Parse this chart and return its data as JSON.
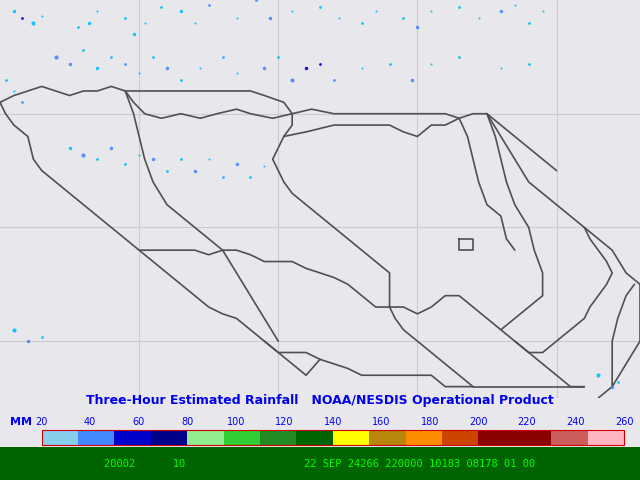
{
  "title_line1": "Three-Hour Estimated Rainfall   NOAA/NESDIS Operational Product",
  "title_color": "#0000EE",
  "map_bg": "#E8E8EC",
  "border_color": "#505050",
  "grid_color": "#CCCCCC",
  "bottom_bar_color": "#006400",
  "bottom_text": "20002      10                   22 SEP 24266 220000 10183 08178 01 00",
  "bottom_text_color": "#00FF00",
  "colorbar_label": "MM",
  "colorbar_tick_labels": [
    "20",
    "40",
    "60",
    "80",
    "100",
    "120",
    "140",
    "160",
    "180",
    "200",
    "220",
    "240",
    "260"
  ],
  "colorbar_colors": [
    "#87CEEB",
    "#4488FF",
    "#0000CD",
    "#00008B",
    "#90EE90",
    "#32CD32",
    "#228B22",
    "#006400",
    "#FFFF00",
    "#B8860B",
    "#FF8C00",
    "#CC4400",
    "#8B0000",
    "#8B0000",
    "#CD5C5C",
    "#FFB6C1"
  ],
  "x_ticks": [
    60,
    55,
    50,
    45
  ],
  "y_ticks": [
    -10,
    -15,
    -20
  ],
  "xlim": [
    65.0,
    42.0
  ],
  "ylim": [
    -22.5,
    -5.0
  ],
  "figsize": [
    6.4,
    4.8
  ],
  "dpi": 100,
  "lw": 1.2,
  "rainfall_patches": [
    [
      64.5,
      -5.5,
      "#00BFFF",
      5
    ],
    [
      64.2,
      -5.8,
      "#0000CD",
      4
    ],
    [
      63.8,
      -6.0,
      "#00BFFF",
      6
    ],
    [
      63.5,
      -5.7,
      "#00BFFF",
      3
    ],
    [
      62.2,
      -6.2,
      "#00BFFF",
      4
    ],
    [
      61.8,
      -6.0,
      "#00BFFF",
      5
    ],
    [
      61.5,
      -5.5,
      "#00BFFF",
      3
    ],
    [
      60.5,
      -5.8,
      "#00BFFF",
      4
    ],
    [
      60.2,
      -6.5,
      "#00BFFF",
      5
    ],
    [
      59.8,
      -6.0,
      "#00BFFF",
      3
    ],
    [
      59.2,
      -5.3,
      "#00BFFF",
      4
    ],
    [
      58.5,
      -5.5,
      "#00BFFF",
      5
    ],
    [
      58.0,
      -6.0,
      "#00BFFF",
      3
    ],
    [
      57.5,
      -5.2,
      "#4488FF",
      4
    ],
    [
      56.5,
      -5.8,
      "#00BFFF",
      3
    ],
    [
      55.8,
      -5.0,
      "#4488FF",
      4
    ],
    [
      55.3,
      -5.8,
      "#4488FF",
      5
    ],
    [
      54.5,
      -5.5,
      "#00BFFF",
      3
    ],
    [
      53.5,
      -5.3,
      "#00BFFF",
      4
    ],
    [
      52.8,
      -5.8,
      "#00BFFF",
      3
    ],
    [
      52.0,
      -6.0,
      "#00BFFF",
      4
    ],
    [
      51.5,
      -5.5,
      "#00BFFF",
      3
    ],
    [
      50.5,
      -5.8,
      "#00BFFF",
      4
    ],
    [
      50.0,
      -6.2,
      "#4488FF",
      5
    ],
    [
      49.5,
      -5.5,
      "#00BFFF",
      3
    ],
    [
      48.5,
      -5.3,
      "#00BFFF",
      4
    ],
    [
      47.8,
      -5.8,
      "#00BFFF",
      3
    ],
    [
      47.0,
      -5.5,
      "#4488FF",
      5
    ],
    [
      46.5,
      -5.2,
      "#00BFFF",
      3
    ],
    [
      46.0,
      -6.0,
      "#00BFFF",
      4
    ],
    [
      45.5,
      -5.5,
      "#00BFFF",
      3
    ],
    [
      63.0,
      -7.5,
      "#4488FF",
      6
    ],
    [
      62.5,
      -7.8,
      "#4488FF",
      5
    ],
    [
      62.0,
      -7.2,
      "#00BFFF",
      4
    ],
    [
      61.5,
      -8.0,
      "#00BFFF",
      5
    ],
    [
      61.0,
      -7.5,
      "#00BFFF",
      4
    ],
    [
      60.5,
      -7.8,
      "#4488FF",
      4
    ],
    [
      60.0,
      -8.2,
      "#00BFFF",
      3
    ],
    [
      59.5,
      -7.5,
      "#00BFFF",
      4
    ],
    [
      59.0,
      -8.0,
      "#4488FF",
      5
    ],
    [
      58.5,
      -8.5,
      "#00BFFF",
      4
    ],
    [
      57.8,
      -8.0,
      "#00BFFF",
      3
    ],
    [
      57.0,
      -7.5,
      "#00BFFF",
      4
    ],
    [
      56.5,
      -8.2,
      "#00BFFF",
      3
    ],
    [
      55.5,
      -8.0,
      "#4488FF",
      5
    ],
    [
      55.0,
      -7.5,
      "#00BFFF",
      4
    ],
    [
      54.5,
      -8.5,
      "#4488FF",
      6
    ],
    [
      54.0,
      -8.0,
      "#0000CD",
      5
    ],
    [
      53.5,
      -7.8,
      "#0000CD",
      4
    ],
    [
      53.0,
      -8.5,
      "#4488FF",
      4
    ],
    [
      52.0,
      -8.0,
      "#00BFFF",
      3
    ],
    [
      51.0,
      -7.8,
      "#00BFFF",
      4
    ],
    [
      50.2,
      -8.5,
      "#4488FF",
      5
    ],
    [
      49.5,
      -7.8,
      "#00BFFF",
      3
    ],
    [
      48.5,
      -7.5,
      "#00BFFF",
      4
    ],
    [
      47.0,
      -8.0,
      "#00BFFF",
      3
    ],
    [
      46.0,
      -7.8,
      "#00BFFF",
      4
    ],
    [
      62.5,
      -11.5,
      "#00BFFF",
      5
    ],
    [
      62.0,
      -11.8,
      "#4488FF",
      6
    ],
    [
      61.5,
      -12.0,
      "#00BFFF",
      4
    ],
    [
      61.0,
      -11.5,
      "#4488FF",
      5
    ],
    [
      60.5,
      -12.2,
      "#00BFFF",
      4
    ],
    [
      60.0,
      -11.8,
      "#00BFFF",
      3
    ],
    [
      59.5,
      -12.0,
      "#4488FF",
      5
    ],
    [
      59.0,
      -12.5,
      "#00BFFF",
      4
    ],
    [
      58.5,
      -12.0,
      "#00BFFF",
      4
    ],
    [
      58.0,
      -12.5,
      "#4488FF",
      5
    ],
    [
      57.5,
      -12.0,
      "#00BFFF",
      3
    ],
    [
      57.0,
      -12.8,
      "#00BFFF",
      4
    ],
    [
      56.5,
      -12.2,
      "#4488FF",
      5
    ],
    [
      56.0,
      -12.8,
      "#00BFFF",
      4
    ],
    [
      55.5,
      -12.3,
      "#00BFFF",
      3
    ],
    [
      64.5,
      -19.5,
      "#00BFFF",
      6
    ],
    [
      64.0,
      -20.0,
      "#4488FF",
      5
    ],
    [
      63.5,
      -19.8,
      "#00BFFF",
      4
    ],
    [
      43.5,
      -21.5,
      "#00BFFF",
      6
    ],
    [
      43.0,
      -22.0,
      "#4488FF",
      5
    ],
    [
      42.8,
      -21.8,
      "#00BFFF",
      4
    ],
    [
      64.8,
      -8.5,
      "#00BFFF",
      4
    ],
    [
      64.5,
      -9.0,
      "#00BFFF",
      3
    ],
    [
      64.2,
      -9.5,
      "#4488FF",
      4
    ]
  ]
}
